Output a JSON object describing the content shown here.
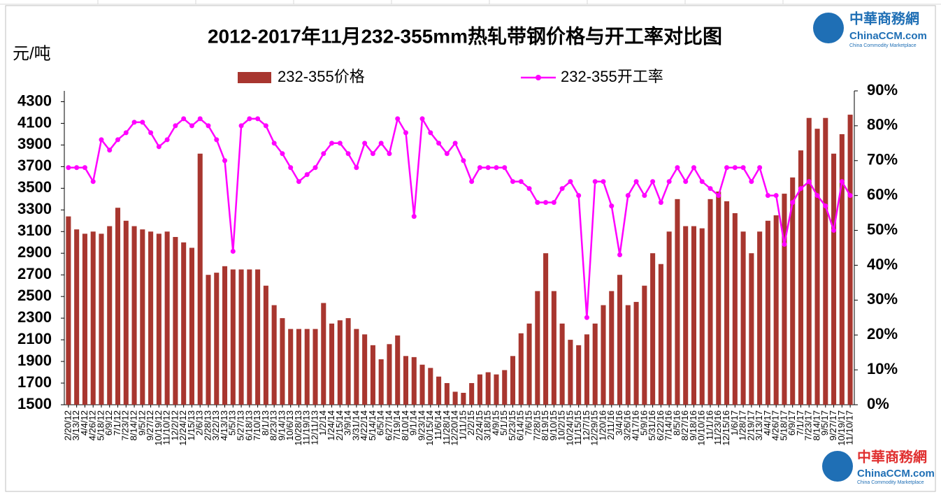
{
  "chart_data": {
    "type": "bar_line",
    "title": "2012-2017年11月232-355mm热轧带钢价格与开工率对比图",
    "y_label": "元/吨",
    "watermark": {
      "name": "中華商務網",
      "site": "ChinaCCM.com",
      "tagline": "China Commodity Marketplace"
    },
    "categories": [
      "2/20/12",
      "3/13/12",
      "4/4/12",
      "4/26/12",
      "5/18/12",
      "6/9/12",
      "7/1/12",
      "7/23/12",
      "8/14/12",
      "9/5/12",
      "9/27/12",
      "10/19/12",
      "11/10/12",
      "12/2/12",
      "12/24/12",
      "1/15/13",
      "2/6/13",
      "2/28/13",
      "3/22/13",
      "4/13/13",
      "5/5/13",
      "5/27/13",
      "6/18/13",
      "7/10/13",
      "8/1/13",
      "8/23/13",
      "9/14/13",
      "10/6/13",
      "10/28/13",
      "11/19/13",
      "12/11/13",
      "1/2/14",
      "1/24/14",
      "2/15/14",
      "3/9/14",
      "3/31/14",
      "4/22/14",
      "5/14/14",
      "6/5/14",
      "6/27/14",
      "7/19/14",
      "8/10/14",
      "9/1/14",
      "9/23/14",
      "10/15/14",
      "11/6/14",
      "11/28/14",
      "12/20/14",
      "1/11/15",
      "2/2/15",
      "2/24/15",
      "3/18/15",
      "4/9/15",
      "5/1/15",
      "5/23/15",
      "6/14/15",
      "7/6/15",
      "7/28/15",
      "8/19/15",
      "9/10/15",
      "10/2/15",
      "10/24/15",
      "11/15/15",
      "12/7/15",
      "12/29/15",
      "1/20/16",
      "2/11/16",
      "3/4/16",
      "3/26/16",
      "4/17/16",
      "5/9/16",
      "5/31/16",
      "6/22/16",
      "7/14/16",
      "8/5/16",
      "8/27/16",
      "9/18/16",
      "10/10/16",
      "11/1/16",
      "11/23/16",
      "12/15/16",
      "1/6/17",
      "1/28/17",
      "2/19/17",
      "3/13/17",
      "4/4/17",
      "4/26/17",
      "5/18/17",
      "6/9/17",
      "7/1/17",
      "7/23/17",
      "8/14/17",
      "9/5/17",
      "9/27/17",
      "10/19/17",
      "11/10/17"
    ],
    "series": [
      {
        "name": "232-355价格",
        "type": "bar",
        "color": "#a8362f",
        "values": [
          3240,
          3120,
          3080,
          3100,
          3080,
          3150,
          3320,
          3200,
          3150,
          3120,
          3100,
          3080,
          3100,
          3050,
          3000,
          2950,
          3820,
          2700,
          2720,
          2780,
          2750,
          2750,
          2750,
          2750,
          2600,
          2420,
          2300,
          2200,
          2200,
          2200,
          2200,
          2440,
          2250,
          2280,
          2300,
          2200,
          2150,
          2050,
          1920,
          2060,
          2140,
          1950,
          1940,
          1870,
          1840,
          1760,
          1700,
          1620,
          1610,
          1700,
          1780,
          1800,
          1780,
          1820,
          1950,
          2160,
          2250,
          2550,
          2900,
          2550,
          2250,
          2100,
          2050,
          2150,
          2250,
          2420,
          2550,
          2700,
          2420,
          2450,
          2600,
          2900,
          2800,
          3100,
          3400,
          3150,
          3150,
          3130,
          3400,
          3470,
          3380,
          3270,
          3100,
          2900,
          3100,
          3200,
          3250,
          3450,
          3600,
          3850,
          4150,
          4050,
          4150,
          3820,
          4000,
          4180
        ]
      },
      {
        "name": "232-355开工率",
        "type": "line",
        "axis": "y2",
        "color": "#ff00ff",
        "values": [
          68,
          68,
          68,
          64,
          76,
          73,
          76,
          78,
          81,
          81,
          78,
          74,
          76,
          80,
          82,
          80,
          82,
          80,
          76,
          70,
          44,
          80,
          82,
          82,
          80,
          75,
          72,
          68,
          64,
          66,
          68,
          72,
          75,
          75,
          72,
          68,
          75,
          72,
          75,
          72,
          82,
          78,
          54,
          82,
          78,
          75,
          72,
          75,
          70,
          64,
          68,
          68,
          68,
          68,
          64,
          64,
          62,
          58,
          58,
          58,
          62,
          64,
          60,
          25,
          64,
          64,
          57,
          43,
          60,
          64,
          60,
          64,
          58,
          64,
          68,
          64,
          68,
          64,
          62,
          60,
          68,
          68,
          68,
          64,
          68,
          60,
          60,
          46,
          58,
          62,
          64,
          60,
          57,
          50,
          64,
          60
        ]
      }
    ],
    "ylim": [
      1500,
      4400
    ],
    "yticks": [
      1500,
      1700,
      1900,
      2100,
      2300,
      2500,
      2700,
      2900,
      3100,
      3300,
      3500,
      3700,
      3900,
      4100,
      4300
    ],
    "y2lim": [
      0,
      90
    ],
    "y2ticks": [
      {
        "value": 0,
        "label": "0%"
      },
      {
        "value": 10,
        "label": "10%"
      },
      {
        "value": 20,
        "label": "20%"
      },
      {
        "value": 30,
        "label": "30%"
      },
      {
        "value": 40,
        "label": "40%"
      },
      {
        "value": 50,
        "label": "50%"
      },
      {
        "value": 60,
        "label": "60%"
      },
      {
        "value": 70,
        "label": "70%"
      },
      {
        "value": 80,
        "label": "80%"
      },
      {
        "value": 90,
        "label": "90%"
      }
    ]
  }
}
